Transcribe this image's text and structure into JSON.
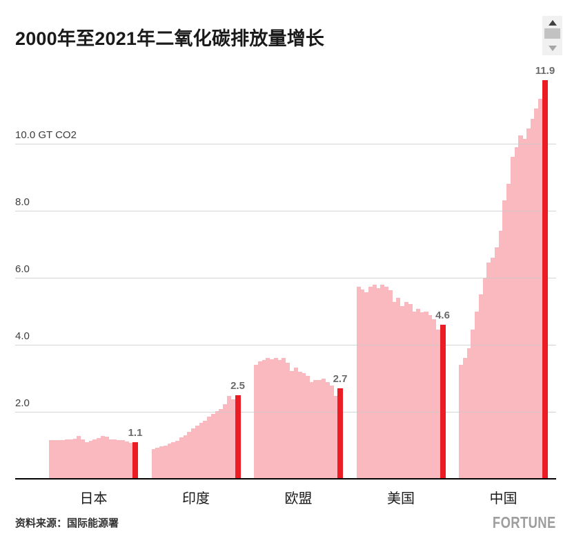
{
  "title": "2000年至2021年二氧化碳排放量增长",
  "source_label": "资料来源：国际能源署",
  "brand": "FORTUNE",
  "scrollbar": {
    "up_icon": "up-arrow",
    "thumb": "scroll-thumb",
    "down_icon": "down-arrow"
  },
  "chart_data": {
    "type": "area",
    "subtype": "step-area-small-multiples",
    "title": "2000年至2021年二氧化碳排放量增长",
    "unit": "GT CO2",
    "years": [
      2000,
      2001,
      2002,
      2003,
      2004,
      2005,
      2006,
      2007,
      2008,
      2009,
      2010,
      2011,
      2012,
      2013,
      2014,
      2015,
      2016,
      2017,
      2018,
      2019,
      2020,
      2021
    ],
    "highlight_year": 2021,
    "y_axis": {
      "ticks": [
        {
          "value": 10.0,
          "label": "10.0 GT CO2"
        },
        {
          "value": 8.0,
          "label": "8.0"
        },
        {
          "value": 6.0,
          "label": "6.0"
        },
        {
          "value": 4.0,
          "label": "4.0"
        },
        {
          "value": 2.0,
          "label": "2.0"
        }
      ],
      "ylim": [
        0,
        12.3
      ],
      "grid": true
    },
    "series": [
      {
        "name": "日本",
        "values_2000_2020": [
          1.16,
          1.16,
          1.16,
          1.16,
          1.17,
          1.18,
          1.2,
          1.27,
          1.18,
          1.1,
          1.14,
          1.17,
          1.22,
          1.28,
          1.26,
          1.18,
          1.17,
          1.16,
          1.15,
          1.12,
          1.08
        ],
        "value_2021": 1.1,
        "final_label": "1.1"
      },
      {
        "name": "印度",
        "values_2000_2020": [
          0.89,
          0.93,
          0.97,
          1.0,
          1.05,
          1.09,
          1.13,
          1.23,
          1.3,
          1.4,
          1.51,
          1.59,
          1.68,
          1.74,
          1.85,
          1.93,
          2.02,
          2.09,
          2.23,
          2.47,
          2.37
        ],
        "value_2021": 2.5,
        "final_label": "2.5"
      },
      {
        "name": "欧盟",
        "values_2000_2020": [
          3.4,
          3.5,
          3.55,
          3.6,
          3.57,
          3.6,
          3.55,
          3.6,
          3.47,
          3.22,
          3.33,
          3.2,
          3.15,
          3.08,
          2.88,
          2.95,
          2.95,
          2.98,
          2.88,
          2.78,
          2.48
        ],
        "value_2021": 2.7,
        "final_label": "2.7"
      },
      {
        "name": "美国",
        "values_2000_2020": [
          5.73,
          5.64,
          5.57,
          5.73,
          5.79,
          5.7,
          5.79,
          5.73,
          5.62,
          5.28,
          5.4,
          5.15,
          5.28,
          5.22,
          5.0,
          5.07,
          4.97,
          5.0,
          4.88,
          4.77,
          4.45
        ],
        "value_2021": 4.6,
        "final_label": "4.6"
      },
      {
        "name": "中国",
        "values_2000_2020": [
          3.4,
          3.6,
          3.9,
          4.45,
          5.0,
          5.5,
          6.0,
          6.45,
          6.6,
          6.9,
          7.4,
          8.3,
          8.8,
          9.6,
          9.9,
          10.25,
          10.15,
          10.45,
          10.75,
          11.05,
          11.35
        ],
        "value_2021": 11.9,
        "final_label": "11.9"
      }
    ],
    "colors": {
      "area_pink": "#f9b9be",
      "final_bar_red": "#ec1c24",
      "gridline": "#c9c9c9",
      "baseline": "#000000",
      "value_label": "#6a6a6a"
    },
    "legend": "none"
  }
}
